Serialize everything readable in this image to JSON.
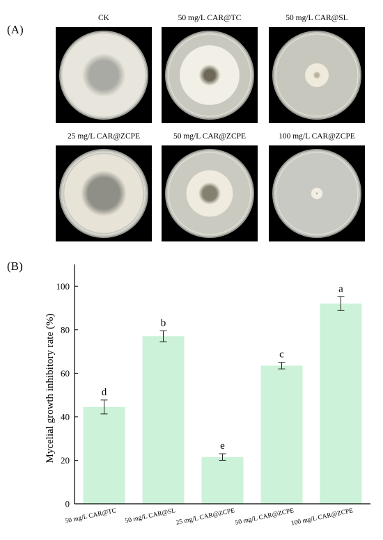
{
  "panel_a": {
    "label": "(A)",
    "plates": [
      {
        "title": "CK",
        "agar": "#cfcfc6",
        "colony": "#e8e6dc",
        "center": "#a9aaa3",
        "colony_frac": 0.94,
        "center_frac": 0.35
      },
      {
        "title": "50 mg/L  CAR@TC",
        "agar": "#c9c8bf",
        "colony": "#f1efe6",
        "center": "#6e6858",
        "colony_frac": 0.68,
        "center_frac": 0.18
      },
      {
        "title": "50 mg/L CAR@SL",
        "agar": "#c8c7bd",
        "colony": "#efebdc",
        "center": "#b9b29d",
        "colony_frac": 0.27,
        "center_frac": 0.16
      },
      {
        "title": "25 mg/L CAR@ZCPE",
        "agar": "#c8c8c0",
        "colony": "#e7e3d6",
        "center": "#8f8f87",
        "colony_frac": 0.9,
        "center_frac": 0.4
      },
      {
        "title": "50 mg/L CAR@ZCPE",
        "agar": "#cbcac0",
        "colony": "#efebdf",
        "center": "#85806f",
        "colony_frac": 0.53,
        "center_frac": 0.3
      },
      {
        "title": "100 mg/L CAR@ZCPE",
        "agar": "#c9c9c3",
        "colony": "#f2eee3",
        "center": "#b1a58c",
        "colony_frac": 0.13,
        "center_frac": 0.06
      }
    ]
  },
  "panel_b_label": "(B)",
  "chart_data": {
    "type": "bar",
    "title": "",
    "xlabel": "",
    "ylabel": "Mycelial growth inhibitory rate (%)",
    "ylim": [
      0,
      110
    ],
    "yticks": [
      0,
      20,
      40,
      60,
      80,
      100
    ],
    "categories": [
      "50 mg/L CAR@TC",
      "50 mg/L CAR@SL",
      "25 mg/L CAR@ZCPE",
      "50 mg/L CAR@ZCPE",
      "100 mg/L CAR@ZCPE"
    ],
    "values": [
      44.5,
      77.0,
      21.5,
      63.5,
      92.0
    ],
    "errors": [
      3.2,
      2.5,
      1.5,
      1.5,
      3.2
    ],
    "significance_letters": [
      "d",
      "b",
      "e",
      "c",
      "a"
    ],
    "bar_color": "#ccf2d9",
    "grid": false
  }
}
